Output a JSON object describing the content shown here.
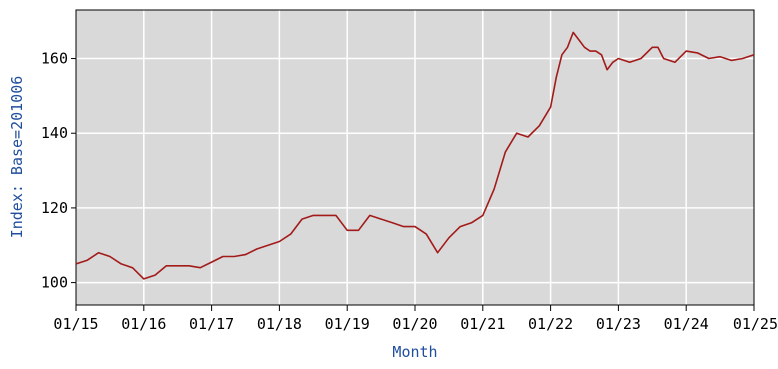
{
  "chart_data": {
    "type": "line",
    "xlabel": "Month",
    "ylabel": "Index: Base=201006",
    "xlim": [
      "2015-01",
      "2025-01"
    ],
    "ylim": [
      94,
      173
    ],
    "x_ticks": [
      "2015-01",
      "2016-01",
      "2017-01",
      "2018-01",
      "2019-01",
      "2020-01",
      "2021-01",
      "2022-01",
      "2023-01",
      "2024-01",
      "2025-01"
    ],
    "x_tick_labels": [
      "01/15",
      "01/16",
      "01/17",
      "01/18",
      "01/19",
      "01/20",
      "01/21",
      "01/22",
      "01/23",
      "01/24",
      "01/25"
    ],
    "y_ticks": [
      100,
      120,
      140,
      160
    ],
    "y_tick_labels": [
      "100",
      "120",
      "140",
      "160"
    ],
    "grid": true,
    "colors": {
      "line": "#a31a1a",
      "plot_background": "#d9d9d9",
      "grid": "#ffffff",
      "axis_label": "#1f4e9c"
    },
    "series": [
      {
        "x": [
          "2015-01",
          "2015-03",
          "2015-05",
          "2015-07",
          "2015-09",
          "2015-11",
          "2016-01",
          "2016-03",
          "2016-05",
          "2016-07",
          "2016-09",
          "2016-11",
          "2017-01",
          "2017-03",
          "2017-05",
          "2017-07",
          "2017-09",
          "2017-11",
          "2018-01",
          "2018-03",
          "2018-05",
          "2018-07",
          "2018-09",
          "2018-11",
          "2019-01",
          "2019-03",
          "2019-05",
          "2019-07",
          "2019-09",
          "2019-11",
          "2020-01",
          "2020-03",
          "2020-05",
          "2020-07",
          "2020-09",
          "2020-11",
          "2021-01",
          "2021-03",
          "2021-05",
          "2021-07",
          "2021-09",
          "2021-11",
          "2022-01",
          "2022-02",
          "2022-03",
          "2022-04",
          "2022-05",
          "2022-06",
          "2022-07",
          "2022-08",
          "2022-09",
          "2022-10",
          "2022-11",
          "2022-12",
          "2023-01",
          "2023-03",
          "2023-05",
          "2023-07",
          "2023-08",
          "2023-09",
          "2023-11",
          "2024-01",
          "2024-03",
          "2024-05",
          "2024-07",
          "2024-09",
          "2024-11",
          "2025-01"
        ],
        "values": [
          105,
          106,
          108,
          107,
          105,
          104,
          101,
          102,
          104.5,
          104.5,
          104.5,
          104,
          105.5,
          107,
          107,
          107.5,
          109,
          110,
          111,
          113,
          117,
          118,
          118,
          118,
          114,
          114,
          118,
          117,
          116,
          115,
          115,
          113,
          108,
          112,
          115,
          116,
          118,
          125,
          135,
          140,
          139,
          142,
          147,
          155,
          161,
          163,
          167,
          165,
          163,
          162,
          162,
          161,
          157,
          159,
          160,
          159,
          160,
          163,
          163,
          160,
          159,
          162,
          161.5,
          160,
          160.5,
          159.5,
          160,
          161
        ]
      }
    ]
  }
}
